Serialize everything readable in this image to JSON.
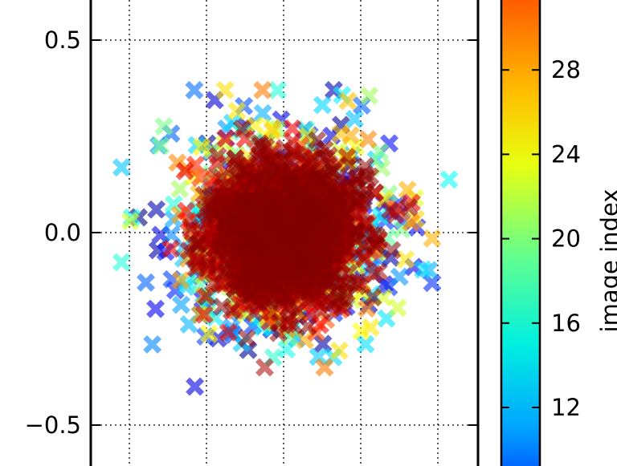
{
  "chart_data": {
    "type": "scatter",
    "marker": "X",
    "title": "",
    "xlabel": "",
    "ylabel": "",
    "ylim": [
      -0.6,
      0.6
    ],
    "yticks": [
      {
        "value": 0.5,
        "label": "0.5"
      },
      {
        "value": 0.0,
        "label": "0.0"
      },
      {
        "value": -0.5,
        "label": "−0.5"
      }
    ],
    "grid": true,
    "grid_style": "dotted",
    "cluster": {
      "center": [
        0.0,
        0.0
      ],
      "spread_x": 0.1,
      "spread_y": 0.1,
      "point_count": 2600
    },
    "outlier_examples": [
      {
        "x": -0.23,
        "y": -0.4,
        "index": 12
      },
      {
        "x": 0.13,
        "y": 0.37,
        "index": 11
      },
      {
        "x": 0.24,
        "y": 0.19,
        "index": 17
      },
      {
        "x": -0.33,
        "y": 0.06,
        "index": 11
      },
      {
        "x": 0.22,
        "y": -0.04,
        "index": 11
      }
    ],
    "colorbar": {
      "label": "image index",
      "colormap": "jet",
      "range": [
        10,
        31
      ],
      "ticks": [
        {
          "value": 12,
          "label": "12"
        },
        {
          "value": 16,
          "label": "16"
        },
        {
          "value": 20,
          "label": "20"
        },
        {
          "value": 24,
          "label": "24"
        },
        {
          "value": 28,
          "label": "28"
        }
      ]
    }
  }
}
